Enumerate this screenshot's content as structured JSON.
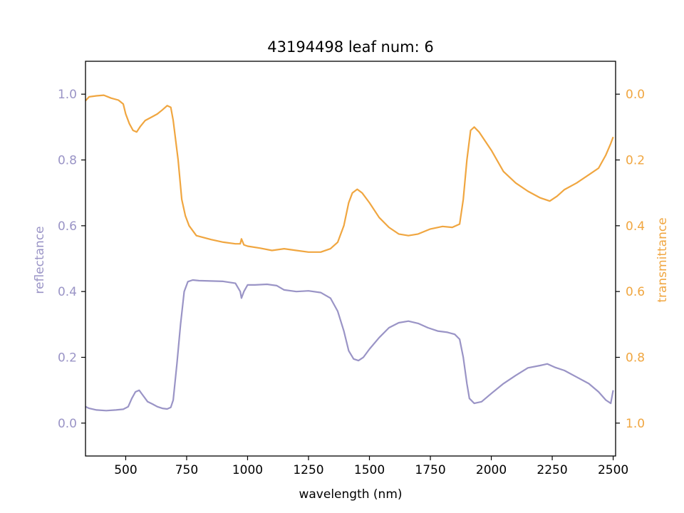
{
  "chart_data": {
    "type": "line",
    "title": "43194498 leaf num: 6",
    "xlabel": "wavelength (nm)",
    "ylabel_left": "reflectance",
    "ylabel_right": "transmittance",
    "xlim": [
      335,
      2510
    ],
    "ylim_left": [
      -0.1,
      1.1
    ],
    "ylim_right": [
      1.1,
      -0.1
    ],
    "right_axis_inverted": true,
    "grid": false,
    "x_ticks": [
      500,
      750,
      1000,
      1250,
      1500,
      1750,
      2000,
      2250,
      2500
    ],
    "x_tick_labels": [
      "500",
      "750",
      "1000",
      "1250",
      "1500",
      "1750",
      "2000",
      "2250",
      "2500"
    ],
    "y_ticks_left": [
      0.0,
      0.2,
      0.4,
      0.6,
      0.8,
      1.0
    ],
    "y_tick_labels_left": [
      "0.0",
      "0.2",
      "0.4",
      "0.6",
      "0.8",
      "1.0"
    ],
    "y_ticks_right": [
      0.0,
      0.2,
      0.4,
      0.6,
      0.8,
      1.0
    ],
    "y_tick_labels_right": [
      "0.0",
      "0.2",
      "0.4",
      "0.6",
      "0.8",
      "1.0"
    ],
    "colors": {
      "reflectance": "#9a94c6",
      "transmittance": "#f0a640",
      "axis": "#000000",
      "background": "#ffffff"
    },
    "series": [
      {
        "axis": "left",
        "color": "#9a94c6",
        "points": [
          [
            335,
            0.05
          ],
          [
            350,
            0.045
          ],
          [
            380,
            0.04
          ],
          [
            420,
            0.038
          ],
          [
            460,
            0.04
          ],
          [
            490,
            0.042
          ],
          [
            510,
            0.05
          ],
          [
            525,
            0.075
          ],
          [
            540,
            0.095
          ],
          [
            555,
            0.1
          ],
          [
            570,
            0.085
          ],
          [
            590,
            0.065
          ],
          [
            610,
            0.058
          ],
          [
            630,
            0.05
          ],
          [
            650,
            0.045
          ],
          [
            670,
            0.043
          ],
          [
            685,
            0.048
          ],
          [
            695,
            0.07
          ],
          [
            710,
            0.18
          ],
          [
            725,
            0.3
          ],
          [
            740,
            0.4
          ],
          [
            755,
            0.43
          ],
          [
            775,
            0.435
          ],
          [
            800,
            0.433
          ],
          [
            850,
            0.432
          ],
          [
            900,
            0.431
          ],
          [
            950,
            0.425
          ],
          [
            970,
            0.4
          ],
          [
            975,
            0.38
          ],
          [
            985,
            0.4
          ],
          [
            1000,
            0.42
          ],
          [
            1030,
            0.42
          ],
          [
            1080,
            0.422
          ],
          [
            1120,
            0.418
          ],
          [
            1150,
            0.405
          ],
          [
            1200,
            0.4
          ],
          [
            1250,
            0.402
          ],
          [
            1300,
            0.397
          ],
          [
            1340,
            0.38
          ],
          [
            1370,
            0.34
          ],
          [
            1395,
            0.28
          ],
          [
            1415,
            0.22
          ],
          [
            1435,
            0.195
          ],
          [
            1455,
            0.19
          ],
          [
            1475,
            0.2
          ],
          [
            1500,
            0.225
          ],
          [
            1540,
            0.26
          ],
          [
            1580,
            0.29
          ],
          [
            1620,
            0.305
          ],
          [
            1660,
            0.31
          ],
          [
            1700,
            0.303
          ],
          [
            1740,
            0.29
          ],
          [
            1780,
            0.28
          ],
          [
            1820,
            0.276
          ],
          [
            1850,
            0.27
          ],
          [
            1870,
            0.255
          ],
          [
            1885,
            0.2
          ],
          [
            1900,
            0.12
          ],
          [
            1910,
            0.075
          ],
          [
            1930,
            0.06
          ],
          [
            1960,
            0.065
          ],
          [
            2000,
            0.09
          ],
          [
            2050,
            0.12
          ],
          [
            2100,
            0.145
          ],
          [
            2150,
            0.168
          ],
          [
            2200,
            0.175
          ],
          [
            2230,
            0.18
          ],
          [
            2260,
            0.17
          ],
          [
            2300,
            0.16
          ],
          [
            2350,
            0.14
          ],
          [
            2400,
            0.12
          ],
          [
            2440,
            0.095
          ],
          [
            2470,
            0.07
          ],
          [
            2490,
            0.06
          ],
          [
            2500,
            0.1
          ]
        ]
      },
      {
        "axis": "right",
        "color": "#f0a640",
        "points": [
          [
            335,
            0.02
          ],
          [
            350,
            0.008
          ],
          [
            380,
            0.005
          ],
          [
            410,
            0.003
          ],
          [
            440,
            0.012
          ],
          [
            470,
            0.018
          ],
          [
            490,
            0.03
          ],
          [
            500,
            0.06
          ],
          [
            515,
            0.09
          ],
          [
            530,
            0.11
          ],
          [
            545,
            0.115
          ],
          [
            560,
            0.098
          ],
          [
            580,
            0.08
          ],
          [
            610,
            0.068
          ],
          [
            630,
            0.06
          ],
          [
            650,
            0.048
          ],
          [
            670,
            0.035
          ],
          [
            685,
            0.04
          ],
          [
            695,
            0.08
          ],
          [
            715,
            0.2
          ],
          [
            730,
            0.32
          ],
          [
            745,
            0.37
          ],
          [
            760,
            0.4
          ],
          [
            790,
            0.43
          ],
          [
            850,
            0.442
          ],
          [
            900,
            0.45
          ],
          [
            950,
            0.455
          ],
          [
            970,
            0.455
          ],
          [
            975,
            0.44
          ],
          [
            985,
            0.458
          ],
          [
            1000,
            0.462
          ],
          [
            1050,
            0.468
          ],
          [
            1100,
            0.475
          ],
          [
            1150,
            0.47
          ],
          [
            1200,
            0.475
          ],
          [
            1250,
            0.48
          ],
          [
            1300,
            0.48
          ],
          [
            1340,
            0.47
          ],
          [
            1370,
            0.45
          ],
          [
            1395,
            0.4
          ],
          [
            1415,
            0.33
          ],
          [
            1430,
            0.3
          ],
          [
            1450,
            0.289
          ],
          [
            1470,
            0.3
          ],
          [
            1500,
            0.33
          ],
          [
            1540,
            0.375
          ],
          [
            1580,
            0.405
          ],
          [
            1620,
            0.425
          ],
          [
            1660,
            0.43
          ],
          [
            1700,
            0.425
          ],
          [
            1750,
            0.41
          ],
          [
            1800,
            0.402
          ],
          [
            1840,
            0.405
          ],
          [
            1870,
            0.395
          ],
          [
            1885,
            0.32
          ],
          [
            1900,
            0.2
          ],
          [
            1915,
            0.11
          ],
          [
            1930,
            0.1
          ],
          [
            1950,
            0.115
          ],
          [
            2000,
            0.17
          ],
          [
            2050,
            0.235
          ],
          [
            2100,
            0.27
          ],
          [
            2150,
            0.295
          ],
          [
            2200,
            0.315
          ],
          [
            2240,
            0.325
          ],
          [
            2270,
            0.31
          ],
          [
            2300,
            0.29
          ],
          [
            2350,
            0.27
          ],
          [
            2400,
            0.245
          ],
          [
            2440,
            0.225
          ],
          [
            2470,
            0.185
          ],
          [
            2490,
            0.15
          ],
          [
            2500,
            0.13
          ]
        ]
      }
    ]
  }
}
